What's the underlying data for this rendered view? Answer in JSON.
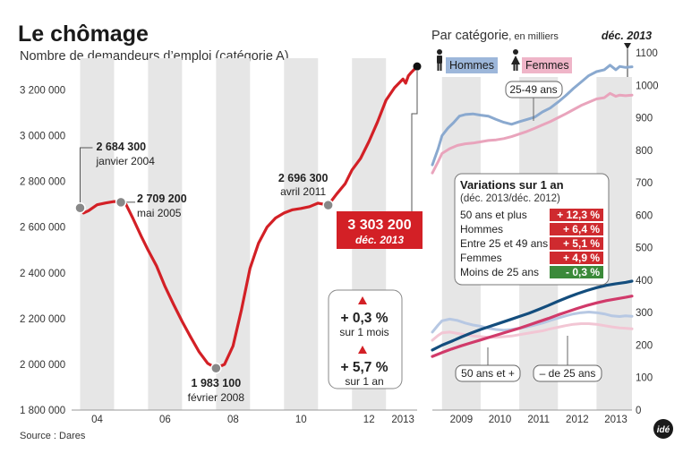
{
  "title": "Le chômage",
  "subtitle": "Nombre de demandeurs d’emploi (catégorie A)",
  "source": "Source : Dares",
  "logo": "idé",
  "colors": {
    "main_line": "#d32026",
    "hommes": "#8aa9cf",
    "femmes": "#e9a4bc",
    "ages_50": "#134d7d",
    "ages_25_49": "#d13a6a",
    "moins_25_h": "#b7c8e3",
    "moins_25_f": "#f2c6d4",
    "positive": "#cf2a2f",
    "negative": "#3b8a3a",
    "band": "#e6e6e6"
  },
  "chart_data": [
    {
      "type": "line",
      "title": "Le chômage",
      "subtitle": "Nombre de demandeurs d’emploi (catégorie A)",
      "x_ticks": [
        "04",
        "06",
        "08",
        "10",
        "12",
        "2013"
      ],
      "y_ticks": [
        "3 200 000",
        "3 000 000",
        "2 800 000",
        "2 600 000",
        "2 400 000",
        "2 200 000",
        "2 000 000",
        "1 800 000"
      ],
      "ylim": [
        1800000,
        3300000
      ],
      "x_range": [
        2003.75,
        2013.917
      ],
      "series": [
        {
          "points": [
            [
              2004.0,
              2684300
            ],
            [
              2004.1,
              2662000
            ],
            [
              2004.25,
              2672000
            ],
            [
              2004.5,
              2698000
            ],
            [
              2004.75,
              2706000
            ],
            [
              2005.0,
              2712000
            ],
            [
              2005.2,
              2709200
            ],
            [
              2005.35,
              2700000
            ],
            [
              2005.55,
              2640000
            ],
            [
              2005.8,
              2560000
            ],
            [
              2006.0,
              2500000
            ],
            [
              2006.25,
              2430000
            ],
            [
              2006.5,
              2340000
            ],
            [
              2006.75,
              2262000
            ],
            [
              2007.0,
              2188000
            ],
            [
              2007.25,
              2120000
            ],
            [
              2007.5,
              2055000
            ],
            [
              2007.75,
              2005000
            ],
            [
              2008.0,
              1983100
            ],
            [
              2008.1,
              1990000
            ],
            [
              2008.25,
              2000000
            ],
            [
              2008.5,
              2080000
            ],
            [
              2008.75,
              2240000
            ],
            [
              2009.0,
              2420000
            ],
            [
              2009.25,
              2530000
            ],
            [
              2009.5,
              2600000
            ],
            [
              2009.75,
              2640000
            ],
            [
              2010.0,
              2662000
            ],
            [
              2010.25,
              2676000
            ],
            [
              2010.5,
              2682000
            ],
            [
              2010.75,
              2690000
            ],
            [
              2011.0,
              2705000
            ],
            [
              2011.3,
              2696300
            ],
            [
              2011.55,
              2745000
            ],
            [
              2011.8,
              2790000
            ],
            [
              2012.0,
              2850000
            ],
            [
              2012.25,
              2900000
            ],
            [
              2012.5,
              2975000
            ],
            [
              2012.75,
              3060000
            ],
            [
              2013.0,
              3155000
            ],
            [
              2013.25,
              3210000
            ],
            [
              2013.5,
              3248000
            ],
            [
              2013.58,
              3230000
            ],
            [
              2013.66,
              3262000
            ],
            [
              2013.75,
              3278000
            ],
            [
              2013.917,
              3303200
            ]
          ]
        }
      ],
      "annotations": [
        {
          "value": "2 684 300",
          "label": "janvier 2004",
          "x": 2004.0,
          "y": 2684300
        },
        {
          "value": "2 709 200",
          "label": "mai 2005",
          "x": 2005.2,
          "y": 2709200
        },
        {
          "value": "1 983 100",
          "label": "février 2008",
          "x": 2008.0,
          "y": 1983100
        },
        {
          "value": "2 696 300",
          "label": "avril 2011",
          "x": 2011.3,
          "y": 2696300
        },
        {
          "value": "3 303 200",
          "label": "déc. 2013",
          "x": 2013.917,
          "y": 3303200
        }
      ],
      "variations": [
        {
          "value": "+ 0,3 %",
          "label": "sur 1 mois"
        },
        {
          "value": "+ 5,7 %",
          "label": "sur 1 an"
        }
      ],
      "grid": false,
      "shaded_bands": true
    },
    {
      "type": "line",
      "title": "Par catégorie",
      "title_unit": ", en milliers",
      "end_label": "déc. 2013",
      "x_ticks": [
        "2009",
        "2010",
        "2011",
        "2012",
        "2013"
      ],
      "y_ticks": [
        "1100",
        "1000",
        "900",
        "800",
        "700",
        "600",
        "500",
        "400",
        "300",
        "200",
        "100",
        "0"
      ],
      "ylim": [
        0,
        1100
      ],
      "x_range": [
        2008.75,
        2013.917
      ],
      "legend": [
        {
          "name": "Hommes",
          "icon": "man-icon"
        },
        {
          "name": "Femmes",
          "icon": "woman-icon"
        }
      ],
      "series_labels": [
        "25-49 ans",
        "50 ans et +",
        "– de 25 ans"
      ],
      "series": [
        {
          "group": "25-49 ans",
          "legend": "Hommes",
          "color": "hommes",
          "points": [
            [
              2008.75,
              755
            ],
            [
              2008.9,
              805
            ],
            [
              2009.0,
              845
            ],
            [
              2009.15,
              868
            ],
            [
              2009.3,
              885
            ],
            [
              2009.45,
              905
            ],
            [
              2009.6,
              910
            ],
            [
              2009.8,
              912
            ],
            [
              2010.0,
              908
            ],
            [
              2010.2,
              905
            ],
            [
              2010.4,
              895
            ],
            [
              2010.6,
              886
            ],
            [
              2010.8,
              880
            ],
            [
              2011.0,
              888
            ],
            [
              2011.2,
              895
            ],
            [
              2011.4,
              902
            ],
            [
              2011.6,
              918
            ],
            [
              2011.8,
              930
            ],
            [
              2012.0,
              948
            ],
            [
              2012.2,
              968
            ],
            [
              2012.4,
              990
            ],
            [
              2012.6,
              1010
            ],
            [
              2012.8,
              1030
            ],
            [
              2013.0,
              1042
            ],
            [
              2013.2,
              1048
            ],
            [
              2013.35,
              1062
            ],
            [
              2013.5,
              1048
            ],
            [
              2013.6,
              1058
            ],
            [
              2013.75,
              1055
            ],
            [
              2013.917,
              1057
            ]
          ]
        },
        {
          "group": "25-49 ans",
          "legend": "Femmes",
          "color": "femmes",
          "points": [
            [
              2008.75,
              730
            ],
            [
              2008.9,
              765
            ],
            [
              2009.0,
              790
            ],
            [
              2009.2,
              805
            ],
            [
              2009.4,
              815
            ],
            [
              2009.6,
              820
            ],
            [
              2009.8,
              822
            ],
            [
              2010.0,
              826
            ],
            [
              2010.2,
              830
            ],
            [
              2010.4,
              832
            ],
            [
              2010.6,
              836
            ],
            [
              2010.8,
              842
            ],
            [
              2011.0,
              850
            ],
            [
              2011.2,
              858
            ],
            [
              2011.4,
              868
            ],
            [
              2011.6,
              878
            ],
            [
              2011.8,
              888
            ],
            [
              2012.0,
              900
            ],
            [
              2012.2,
              912
            ],
            [
              2012.4,
              925
            ],
            [
              2012.6,
              938
            ],
            [
              2012.8,
              948
            ],
            [
              2013.0,
              958
            ],
            [
              2013.2,
              962
            ],
            [
              2013.35,
              975
            ],
            [
              2013.5,
              966
            ],
            [
              2013.6,
              970
            ],
            [
              2013.75,
              968
            ],
            [
              2013.917,
              970
            ]
          ]
        },
        {
          "group": "50 ans et +",
          "legend": "Hommes",
          "color": "ages_50",
          "points": [
            [
              2008.75,
              185
            ],
            [
              2009.0,
              200
            ],
            [
              2009.25,
              212
            ],
            [
              2009.5,
              225
            ],
            [
              2009.75,
              237
            ],
            [
              2010.0,
              248
            ],
            [
              2010.25,
              258
            ],
            [
              2010.5,
              268
            ],
            [
              2010.75,
              278
            ],
            [
              2011.0,
              288
            ],
            [
              2011.25,
              298
            ],
            [
              2011.5,
              310
            ],
            [
              2011.75,
              322
            ],
            [
              2012.0,
              335
            ],
            [
              2012.25,
              347
            ],
            [
              2012.5,
              358
            ],
            [
              2012.75,
              368
            ],
            [
              2013.0,
              377
            ],
            [
              2013.25,
              384
            ],
            [
              2013.5,
              389
            ],
            [
              2013.75,
              393
            ],
            [
              2013.917,
              397
            ]
          ]
        },
        {
          "group": "50 ans et +",
          "legend": "Femmes",
          "color": "ages_25_49",
          "points": [
            [
              2008.75,
              165
            ],
            [
              2009.0,
              177
            ],
            [
              2009.25,
              188
            ],
            [
              2009.5,
              198
            ],
            [
              2009.75,
              207
            ],
            [
              2010.0,
              216
            ],
            [
              2010.25,
              225
            ],
            [
              2010.5,
              234
            ],
            [
              2010.75,
              243
            ],
            [
              2011.0,
              252
            ],
            [
              2011.25,
              262
            ],
            [
              2011.5,
              272
            ],
            [
              2011.75,
              282
            ],
            [
              2012.0,
              293
            ],
            [
              2012.25,
              303
            ],
            [
              2012.5,
              313
            ],
            [
              2012.75,
              322
            ],
            [
              2013.0,
              330
            ],
            [
              2013.25,
              337
            ],
            [
              2013.5,
              342
            ],
            [
              2013.75,
              347
            ],
            [
              2013.917,
              351
            ]
          ]
        },
        {
          "group": "– de 25 ans",
          "legend": "Hommes",
          "color": "moins_25_h",
          "points": [
            [
              2008.75,
              240
            ],
            [
              2008.9,
              262
            ],
            [
              2009.0,
              275
            ],
            [
              2009.2,
              280
            ],
            [
              2009.4,
              276
            ],
            [
              2009.6,
              268
            ],
            [
              2009.8,
              262
            ],
            [
              2010.0,
              258
            ],
            [
              2010.2,
              252
            ],
            [
              2010.4,
              248
            ],
            [
              2010.6,
              246
            ],
            [
              2010.8,
              248
            ],
            [
              2011.0,
              252
            ],
            [
              2011.2,
              256
            ],
            [
              2011.4,
              262
            ],
            [
              2011.6,
              268
            ],
            [
              2011.8,
              276
            ],
            [
              2012.0,
              283
            ],
            [
              2012.2,
              290
            ],
            [
              2012.4,
              296
            ],
            [
              2012.6,
              300
            ],
            [
              2012.8,
              302
            ],
            [
              2013.0,
              300
            ],
            [
              2013.2,
              296
            ],
            [
              2013.4,
              290
            ],
            [
              2013.6,
              288
            ],
            [
              2013.75,
              290
            ],
            [
              2013.917,
              289
            ]
          ]
        },
        {
          "group": "– de 25 ans",
          "legend": "Femmes",
          "color": "moins_25_f",
          "points": [
            [
              2008.75,
              215
            ],
            [
              2008.9,
              230
            ],
            [
              2009.0,
              238
            ],
            [
              2009.2,
              240
            ],
            [
              2009.4,
              236
            ],
            [
              2009.6,
              232
            ],
            [
              2009.8,
              228
            ],
            [
              2010.0,
              226
            ],
            [
              2010.2,
              224
            ],
            [
              2010.4,
              224
            ],
            [
              2010.6,
              226
            ],
            [
              2010.8,
              228
            ],
            [
              2011.0,
              232
            ],
            [
              2011.2,
              236
            ],
            [
              2011.4,
              240
            ],
            [
              2011.6,
              244
            ],
            [
              2011.8,
              250
            ],
            [
              2012.0,
              255
            ],
            [
              2012.2,
              260
            ],
            [
              2012.4,
              264
            ],
            [
              2012.6,
              266
            ],
            [
              2012.8,
              266
            ],
            [
              2013.0,
              264
            ],
            [
              2013.2,
              260
            ],
            [
              2013.4,
              256
            ],
            [
              2013.6,
              253
            ],
            [
              2013.75,
              252
            ],
            [
              2013.917,
              250
            ]
          ]
        }
      ],
      "variations_table": {
        "title": "Variations sur 1 an",
        "subtitle": "(déc. 2013/déc. 2012)",
        "rows": [
          {
            "label": "50 ans et plus",
            "value": "+ 12,3 %",
            "sign": "positive"
          },
          {
            "label": "Hommes",
            "value": "+ 6,4 %",
            "sign": "positive"
          },
          {
            "label": "Entre 25 et 49 ans",
            "value": "+ 5,1 %",
            "sign": "positive"
          },
          {
            "label": "Femmes",
            "value": "+ 4,9 %",
            "sign": "positive"
          },
          {
            "label": "Moins de 25 ans",
            "value": "- 0,3 %",
            "sign": "negative"
          }
        ]
      },
      "grid": false,
      "shaded_bands": true
    }
  ]
}
